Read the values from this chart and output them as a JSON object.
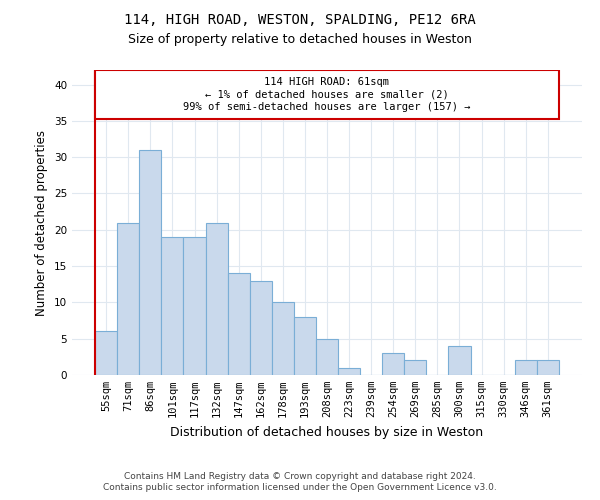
{
  "title1": "114, HIGH ROAD, WESTON, SPALDING, PE12 6RA",
  "title2": "Size of property relative to detached houses in Weston",
  "xlabel": "Distribution of detached houses by size in Weston",
  "ylabel": "Number of detached properties",
  "categories": [
    "55sqm",
    "71sqm",
    "86sqm",
    "101sqm",
    "117sqm",
    "132sqm",
    "147sqm",
    "162sqm",
    "178sqm",
    "193sqm",
    "208sqm",
    "223sqm",
    "239sqm",
    "254sqm",
    "269sqm",
    "285sqm",
    "300sqm",
    "315sqm",
    "330sqm",
    "346sqm",
    "361sqm"
  ],
  "values": [
    6,
    21,
    31,
    19,
    19,
    21,
    14,
    13,
    10,
    8,
    5,
    1,
    0,
    3,
    2,
    0,
    4,
    0,
    0,
    2,
    2
  ],
  "bar_color": "#c9d9ec",
  "bar_edge_color": "#7aaed6",
  "annotation_line1": "114 HIGH ROAD: 61sqm",
  "annotation_line2": "← 1% of detached houses are smaller (2)",
  "annotation_line3": "99% of semi-detached houses are larger (157) →",
  "annotation_box_color": "#ffffff",
  "annotation_box_edge": "#cc0000",
  "ylim": [
    0,
    42
  ],
  "yticks": [
    0,
    5,
    10,
    15,
    20,
    25,
    30,
    35,
    40
  ],
  "footer1": "Contains HM Land Registry data © Crown copyright and database right 2024.",
  "footer2": "Contains public sector information licensed under the Open Government Licence v3.0.",
  "grid_color": "#e0e8f0",
  "title1_fontsize": 10,
  "title2_fontsize": 9,
  "xlabel_fontsize": 9,
  "ylabel_fontsize": 8.5,
  "tick_fontsize": 7.5,
  "annotation_fontsize": 7.5,
  "footer_fontsize": 6.5
}
